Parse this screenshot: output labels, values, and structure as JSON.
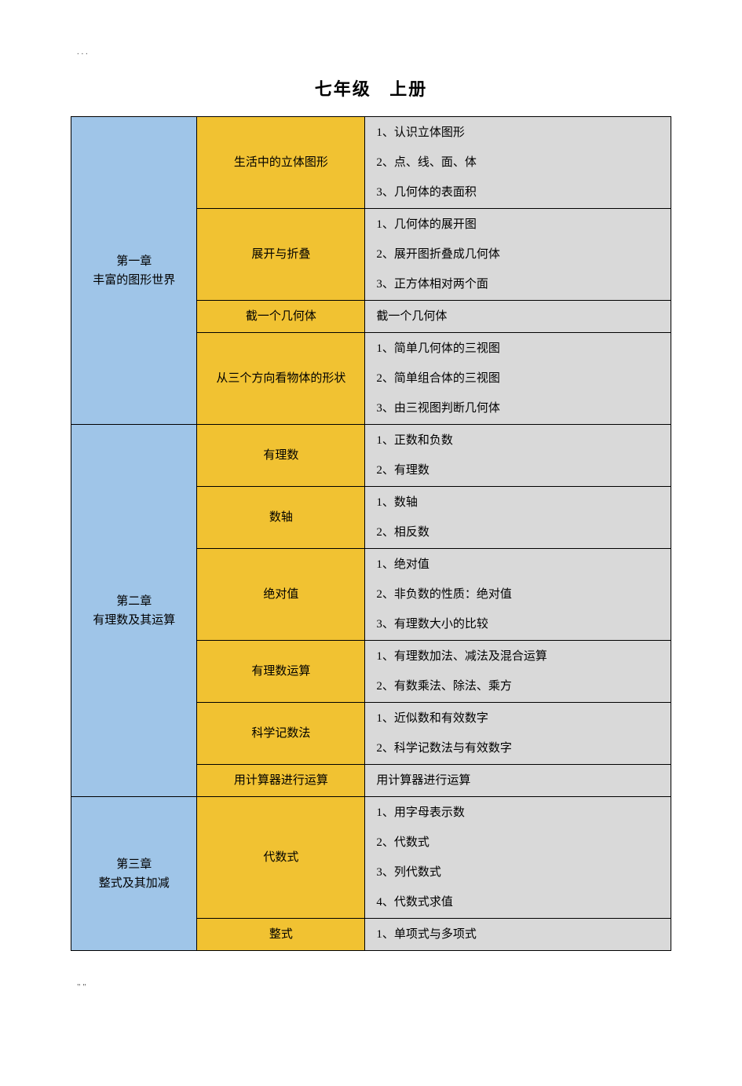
{
  "top_dots": ".     .     .",
  "bottom_quote": "\"            \"",
  "page_title": "七年级 上册",
  "colors": {
    "chapter_bg": "#9FC5E8",
    "section_bg": "#F1C232",
    "topic_bg": "#D9D9D9",
    "border": "#000000",
    "text": "#000000"
  },
  "column_widths_percent": {
    "chapter": 21,
    "section": 28,
    "topic": 51
  },
  "chapters": [
    {
      "title": "第一章\n丰富的图形世界",
      "sections": [
        {
          "title": "生活中的立体图形",
          "topics": [
            "1、认识立体图形",
            "2、点、线、面、体",
            "3、几何体的表面积"
          ]
        },
        {
          "title": "展开与折叠",
          "topics": [
            "1、几何体的展开图",
            "2、展开图折叠成几何体",
            "3、正方体相对两个面"
          ]
        },
        {
          "title": "截一个几何体",
          "topics": [
            "截一个几何体"
          ]
        },
        {
          "title": "从三个方向看物体的形状",
          "topics": [
            "1、简单几何体的三视图",
            "2、简单组合体的三视图",
            "3、由三视图判断几何体"
          ]
        }
      ]
    },
    {
      "title": "第二章\n有理数及其运算",
      "sections": [
        {
          "title": "有理数",
          "topics": [
            "1、正数和负数",
            "2、有理数"
          ]
        },
        {
          "title": "数轴",
          "topics": [
            "1、数轴",
            "2、相反数"
          ]
        },
        {
          "title": "绝对值",
          "topics": [
            "1、绝对值",
            "2、非负数的性质：绝对值",
            "3、有理数大小的比较"
          ]
        },
        {
          "title": "有理数运算",
          "topics": [
            "1、有理数加法、减法及混合运算",
            "2、有数乘法、除法、乘方"
          ]
        },
        {
          "title": "科学记数法",
          "topics": [
            "1、近似数和有效数字",
            "2、科学记数法与有效数字"
          ]
        },
        {
          "title": "用计算器进行运算",
          "topics": [
            "用计算器进行运算"
          ]
        }
      ]
    },
    {
      "title": "第三章\n整式及其加减",
      "sections": [
        {
          "title": "代数式",
          "topics": [
            "1、用字母表示数",
            "2、代数式",
            "3、列代数式",
            "4、代数式求值"
          ]
        },
        {
          "title": "整式",
          "topics": [
            "1、单项式与多项式"
          ]
        }
      ]
    }
  ]
}
